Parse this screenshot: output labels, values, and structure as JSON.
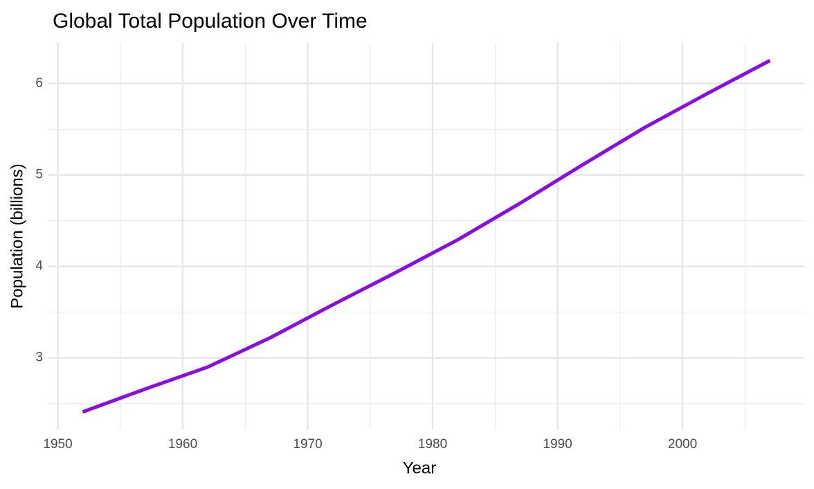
{
  "chart_data": {
    "type": "line",
    "title": "Global Total Population Over Time",
    "x_label": "Year",
    "y_label": "Population (billions)",
    "x": [
      1952,
      1957,
      1962,
      1967,
      1972,
      1977,
      1982,
      1987,
      1992,
      1997,
      2002,
      2007
    ],
    "series": [
      {
        "name": "Population",
        "color": "#8b0aeb",
        "values": [
          2.41,
          2.66,
          2.9,
          3.22,
          3.58,
          3.93,
          4.29,
          4.69,
          5.11,
          5.52,
          5.89,
          6.25
        ]
      }
    ],
    "xlim": [
      1949.25,
      2009.75
    ],
    "xticks": [
      1950,
      1960,
      1970,
      1980,
      1990,
      2000
    ],
    "ylim": [
      2.218,
      6.442
    ],
    "yticks": [
      3,
      4,
      5,
      6
    ],
    "grid": true
  }
}
